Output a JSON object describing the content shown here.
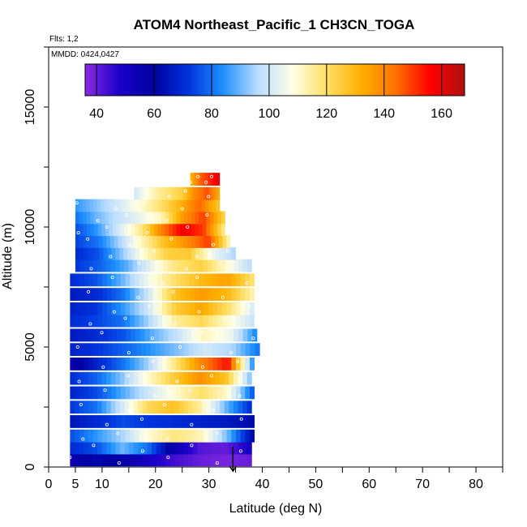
{
  "chart_data": {
    "type": "heatmap",
    "title": "ATOM4 Northeast_Pacific_1 CH3CN_TOGA",
    "annotations": [
      "Flts: 1,2",
      "MMDD: 0424,0427"
    ],
    "xlabel": "Latitude (deg N)",
    "ylabel": "Altitude (m)",
    "xlim": [
      0,
      85
    ],
    "ylim": [
      0,
      17500
    ],
    "x_ticks": [
      0,
      5,
      10,
      20,
      30,
      40,
      50,
      60,
      70,
      80
    ],
    "y_ticks": [
      0,
      5000,
      10000,
      15000
    ],
    "grid": false,
    "colorbar": {
      "range": [
        36,
        168
      ],
      "ticks": [
        40,
        60,
        80,
        100,
        120,
        140,
        160
      ],
      "placement": "top-inside",
      "colors": [
        "#8a2be2",
        "#1a00c8",
        "#0000a0",
        "#0033dd",
        "#1e90ff",
        "#b9dcff",
        "#ffffe6",
        "#ffe066",
        "#ffb000",
        "#ff7000",
        "#ff0000",
        "#b01010"
      ]
    },
    "layers": [
      {
        "alt": 300,
        "lat": [
          4.0,
          38.0
        ],
        "values": [
          55,
          62,
          58,
          50,
          44,
          40,
          38,
          40
        ]
      },
      {
        "alt": 800,
        "lat": [
          4.0,
          38.0
        ],
        "values": [
          70,
          75,
          90,
          80,
          55,
          42,
          40,
          50
        ]
      },
      {
        "alt": 1300,
        "lat": [
          4.0,
          38.5
        ],
        "values": [
          75,
          85,
          95,
          110,
          118,
          112,
          90,
          60
        ]
      },
      {
        "alt": 1900,
        "lat": [
          4.0,
          38.5
        ],
        "values": [
          65,
          70,
          75,
          72,
          70,
          68,
          66,
          62
        ]
      },
      {
        "alt": 2500,
        "lat": [
          4.0,
          38.0
        ],
        "values": [
          72,
          80,
          100,
          122,
          128,
          115,
          90,
          70
        ]
      },
      {
        "alt": 3100,
        "lat": [
          4.0,
          38.5
        ],
        "values": [
          68,
          75,
          88,
          100,
          110,
          120,
          110,
          75
        ]
      },
      {
        "alt": 3700,
        "lat": [
          4.0,
          38.0
        ],
        "values": [
          70,
          78,
          92,
          110,
          125,
          138,
          128,
          90
        ]
      },
      {
        "alt": 4300,
        "lat": [
          4.0,
          38.5
        ],
        "values": [
          55,
          68,
          80,
          95,
          118,
          140,
          155,
          80
        ]
      },
      {
        "alt": 4900,
        "lat": [
          4.0,
          39.5
        ],
        "values": [
          68,
          72,
          78,
          85,
          92,
          100,
          95,
          80
        ]
      },
      {
        "alt": 5500,
        "lat": [
          4.0,
          39.0
        ],
        "values": [
          66,
          70,
          76,
          88,
          98,
          112,
          105,
          82
        ]
      },
      {
        "alt": 6100,
        "lat": [
          4.0,
          38.5
        ],
        "values": [
          70,
          74,
          80,
          95,
          115,
          122,
          110,
          98
        ]
      },
      {
        "alt": 6600,
        "lat": [
          4.0,
          38.5
        ],
        "values": [
          68,
          72,
          85,
          100,
          125,
          134,
          120,
          100
        ]
      },
      {
        "alt": 7200,
        "lat": [
          4.0,
          38.5
        ],
        "values": [
          66,
          70,
          80,
          100,
          128,
          136,
          130,
          112
        ]
      },
      {
        "alt": 7800,
        "lat": [
          4.0,
          38.5
        ],
        "values": [
          70,
          76,
          90,
          106,
          120,
          130,
          135,
          118
        ]
      },
      {
        "alt": 8400,
        "lat": [
          5.0,
          38.0
        ],
        "values": [
          72,
          78,
          88,
          104,
          118,
          124,
          110,
          96
        ]
      },
      {
        "alt": 8900,
        "lat": [
          5.0,
          35.0
        ],
        "values": [
          70,
          76,
          92,
          110,
          124,
          126,
          105,
          95
        ]
      },
      {
        "alt": 9400,
        "lat": [
          5.0,
          34.0
        ],
        "values": [
          74,
          80,
          95,
          112,
          128,
          138,
          150,
          110
        ]
      },
      {
        "alt": 9900,
        "lat": [
          5.0,
          33.0
        ],
        "values": [
          75,
          85,
          100,
          115,
          140,
          158,
          150,
          115
        ]
      },
      {
        "alt": 10400,
        "lat": [
          5.0,
          33.0
        ],
        "values": [
          80,
          90,
          98,
          104,
          112,
          136,
          150,
          122
        ]
      },
      {
        "alt": 10900,
        "lat": [
          5.0,
          32.0
        ],
        "values": [
          85,
          92,
          100,
          108,
          118,
          130,
          145,
          126
        ]
      },
      {
        "alt": 11400,
        "lat": [
          16.0,
          32.0
        ],
        "values": [
          100,
          108,
          115,
          120,
          125,
          140,
          148,
          132
        ]
      },
      {
        "alt": 12000,
        "lat": [
          26.5,
          32.0
        ],
        "values": [
          130,
          145,
          152,
          160
        ]
      }
    ],
    "markers": [
      {
        "type": "arrow-down",
        "lat": 34.5,
        "alt": 300
      }
    ]
  }
}
